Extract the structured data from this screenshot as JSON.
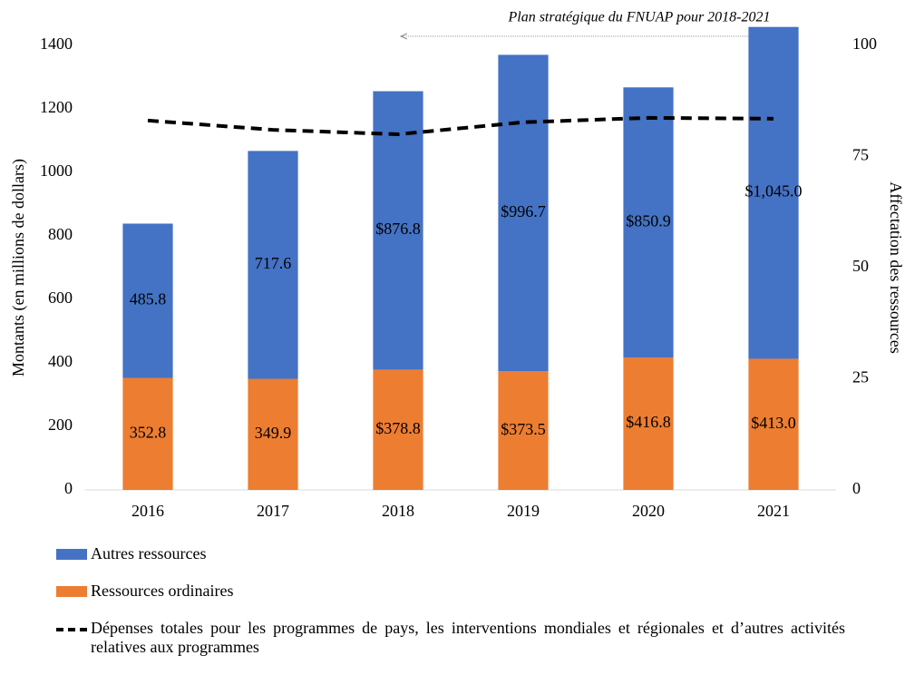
{
  "chart_data": {
    "type": "bar",
    "stacked": true,
    "annotation": "Plan stratégique du FNUAP pour 2018-2021",
    "ylabel": "Montants (en millions de dollars)",
    "y2label": "Affectation des ressources",
    "categories": [
      "2016",
      "2017",
      "2018",
      "2019",
      "2020",
      "2021"
    ],
    "ylim": [
      0,
      1400
    ],
    "yticks": [
      0,
      200,
      400,
      600,
      800,
      1000,
      1200,
      1400
    ],
    "y2lim": [
      0,
      100
    ],
    "y2ticks": [
      0,
      25,
      50,
      75,
      100
    ],
    "series": [
      {
        "name": "Ressources ordinaires",
        "color": "#ed7d31",
        "type": "bar",
        "values": [
          352.8,
          349.9,
          378.8,
          373.5,
          416.8,
          413.0
        ],
        "value_labels": [
          "352.8",
          "349.9",
          "$378.8",
          "$373.5",
          "$416.8",
          "$413.0"
        ]
      },
      {
        "name": "Autres ressources",
        "color": "#4472c4",
        "type": "bar",
        "values": [
          485.8,
          717.6,
          876.8,
          996.7,
          850.9,
          1045.0
        ],
        "value_labels": [
          "485.8",
          "717.6",
          "$876.8",
          "$996.7",
          "$850.9",
          "$1,045.0"
        ]
      },
      {
        "name": "Dépenses totales pour les programmes de pays, les interventions mondiales et régionales et d’autres activités relatives aux programmes",
        "color": "#000000",
        "type": "line",
        "dashed": true,
        "axis": "y2",
        "values": [
          83.1,
          81.0,
          80.0,
          82.7,
          83.7,
          83.5
        ]
      }
    ]
  }
}
